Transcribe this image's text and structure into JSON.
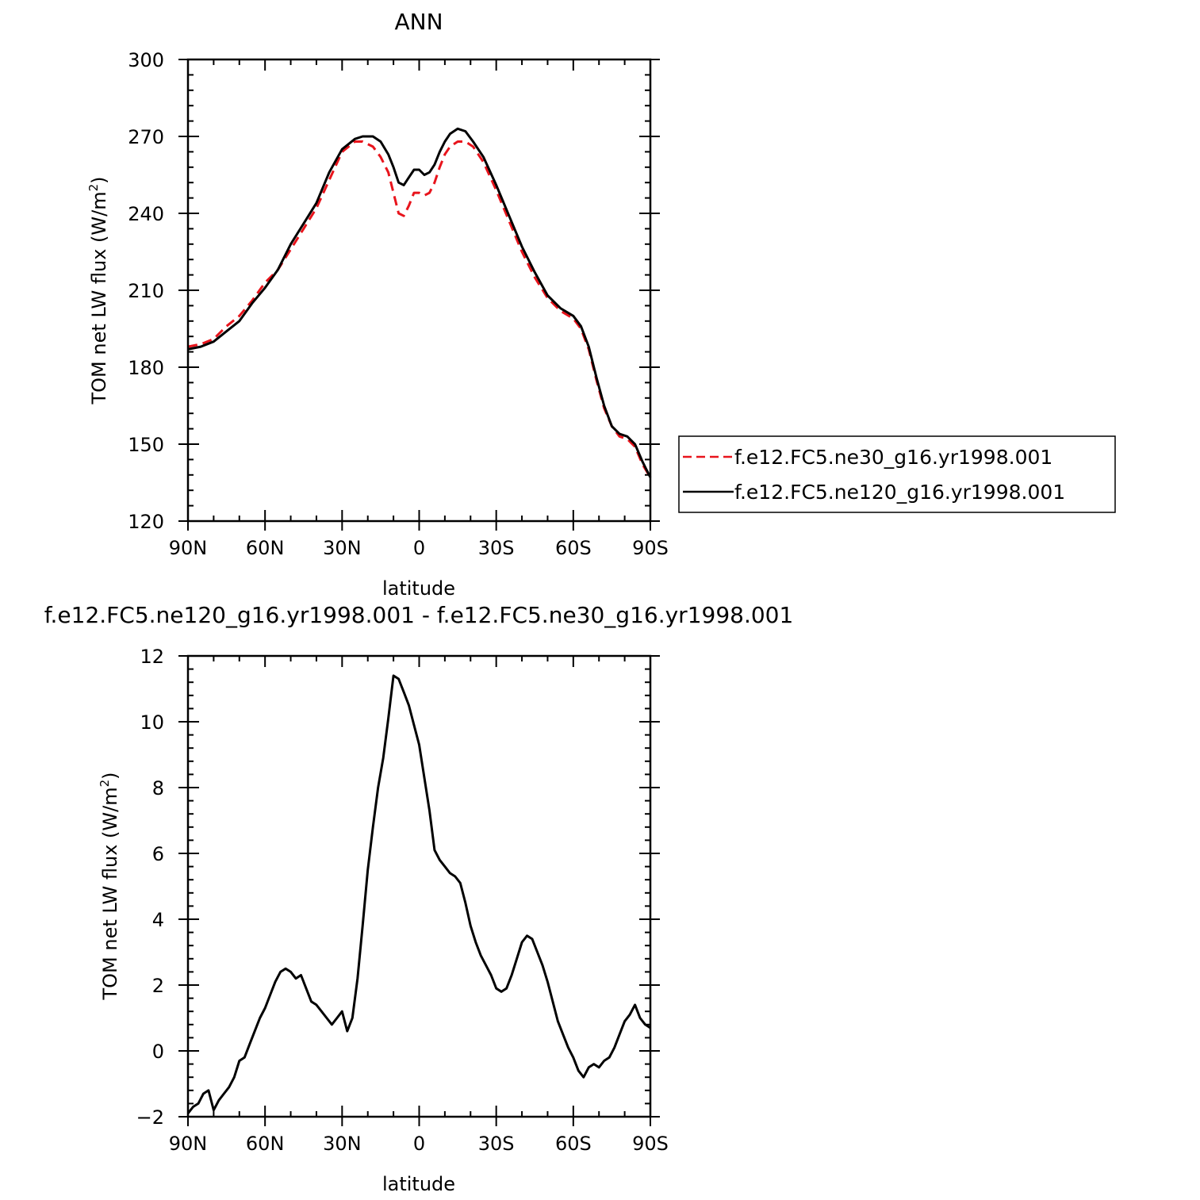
{
  "chart_data": [
    {
      "type": "line",
      "title": "ANN",
      "xlabel": "latitude",
      "ylabel": "TOM net LW flux (W/m",
      "ylabel_sup": "2",
      "ylabel_close": ")",
      "xlim": [
        90,
        -90
      ],
      "ylim": [
        120,
        300
      ],
      "x_ticks": [
        90,
        60,
        30,
        0,
        -30,
        -60,
        -90
      ],
      "x_tick_labels": [
        "90N",
        "60N",
        "30N",
        "0",
        "30S",
        "60S",
        "90S"
      ],
      "y_ticks": [
        120,
        150,
        180,
        210,
        240,
        270,
        300
      ],
      "y_tick_labels": [
        "120",
        "150",
        "180",
        "210",
        "240",
        "270",
        "300"
      ],
      "legend_position": "right",
      "series": [
        {
          "name": "f.e12.FC5.ne30_g16.yr1998.001",
          "color": "#e8141c",
          "dash": "dashed",
          "x": [
            90,
            85,
            80,
            75,
            70,
            65,
            60,
            55,
            50,
            45,
            40,
            35,
            30,
            25,
            22,
            18,
            15,
            12,
            10,
            8,
            6,
            4,
            2,
            0,
            -2,
            -4,
            -6,
            -8,
            -10,
            -12,
            -15,
            -18,
            -21,
            -25,
            -30,
            -35,
            -40,
            -45,
            -50,
            -55,
            -60,
            -63,
            -66,
            -69,
            -72,
            -75,
            -78,
            -81,
            -84,
            -87,
            -90
          ],
          "y": [
            188,
            189,
            191,
            196,
            200,
            206,
            213,
            218,
            226,
            234,
            242,
            253,
            264,
            268,
            268,
            266,
            262,
            256,
            248,
            240,
            239,
            243,
            248,
            248,
            247,
            248,
            252,
            258,
            263,
            266,
            268,
            268,
            266,
            260,
            249,
            237,
            225,
            215,
            207,
            202,
            199,
            195,
            187,
            175,
            164,
            157,
            153,
            152,
            149,
            142,
            137
          ]
        },
        {
          "name": "f.e12.FC5.ne120_g16.yr1998.001",
          "color": "#000000",
          "dash": "solid",
          "x": [
            90,
            85,
            80,
            75,
            70,
            65,
            60,
            55,
            50,
            45,
            40,
            35,
            30,
            25,
            22,
            18,
            15,
            12,
            10,
            8,
            6,
            4,
            2,
            0,
            -2,
            -4,
            -6,
            -8,
            -10,
            -12,
            -15,
            -18,
            -21,
            -25,
            -30,
            -35,
            -40,
            -45,
            -50,
            -55,
            -60,
            -63,
            -66,
            -69,
            -72,
            -75,
            -78,
            -81,
            -84,
            -87,
            -90
          ],
          "y": [
            187,
            188,
            190,
            194,
            198,
            205,
            211,
            218,
            228,
            236,
            244,
            256,
            265,
            269,
            270,
            270,
            268,
            263,
            258,
            252,
            251,
            254,
            257,
            257,
            255,
            256,
            259,
            264,
            268,
            271,
            273,
            272,
            268,
            262,
            251,
            239,
            227,
            217,
            208,
            203,
            200,
            196,
            188,
            176,
            165,
            157,
            154,
            153,
            150,
            143,
            137
          ]
        }
      ]
    },
    {
      "type": "line",
      "title": "f.e12.FC5.ne120_g16.yr1998.001 - f.e12.FC5.ne30_g16.yr1998.001",
      "xlabel": "latitude",
      "ylabel": "TOM net LW flux (W/m",
      "ylabel_sup": "2",
      "ylabel_close": ")",
      "xlim": [
        90,
        -90
      ],
      "ylim": [
        -2,
        12
      ],
      "x_ticks": [
        90,
        60,
        30,
        0,
        -30,
        -60,
        -90
      ],
      "x_tick_labels": [
        "90N",
        "60N",
        "30N",
        "0",
        "30S",
        "60S",
        "90S"
      ],
      "y_ticks": [
        -2,
        0,
        2,
        4,
        6,
        8,
        10,
        12
      ],
      "y_tick_labels": [
        "−2",
        "0",
        "2",
        "4",
        "6",
        "8",
        "10",
        "12"
      ],
      "series": [
        {
          "color": "#000000",
          "dash": "solid",
          "x": [
            90,
            88,
            86,
            84,
            82,
            80,
            78,
            76,
            74,
            72,
            70,
            68,
            66,
            64,
            62,
            60,
            58,
            56,
            54,
            52,
            50,
            48,
            46,
            44,
            42,
            40,
            38,
            36,
            34,
            32,
            30,
            28,
            26,
            24,
            22,
            20,
            18,
            16,
            14,
            12,
            10,
            8,
            6,
            4,
            2,
            0,
            -2,
            -4,
            -6,
            -8,
            -10,
            -12,
            -14,
            -16,
            -18,
            -20,
            -22,
            -24,
            -26,
            -28,
            -30,
            -32,
            -34,
            -36,
            -38,
            -40,
            -42,
            -44,
            -46,
            -48,
            -50,
            -52,
            -54,
            -56,
            -58,
            -60,
            -62,
            -64,
            -66,
            -68,
            -70,
            -72,
            -74,
            -76,
            -78,
            -80,
            -82,
            -84,
            -86,
            -88,
            -90
          ],
          "y": [
            -1.9,
            -1.7,
            -1.6,
            -1.3,
            -1.2,
            -1.8,
            -1.5,
            -1.3,
            -1.1,
            -0.8,
            -0.3,
            -0.2,
            0.2,
            0.6,
            1.0,
            1.3,
            1.7,
            2.1,
            2.4,
            2.5,
            2.4,
            2.2,
            2.3,
            1.9,
            1.5,
            1.4,
            1.2,
            1.0,
            0.8,
            1.0,
            1.2,
            0.6,
            1.0,
            2.2,
            3.8,
            5.5,
            6.8,
            8.0,
            8.9,
            10.1,
            11.4,
            11.3,
            10.9,
            10.5,
            9.9,
            9.3,
            8.3,
            7.3,
            6.1,
            5.8,
            5.6,
            5.4,
            5.3,
            5.1,
            4.5,
            3.8,
            3.3,
            2.9,
            2.6,
            2.3,
            1.9,
            1.8,
            1.9,
            2.3,
            2.8,
            3.3,
            3.5,
            3.4,
            3.0,
            2.6,
            2.1,
            1.5,
            0.9,
            0.5,
            0.1,
            -0.2,
            -0.6,
            -0.8,
            -0.5,
            -0.4,
            -0.5,
            -0.3,
            -0.2,
            0.1,
            0.5,
            0.9,
            1.1,
            1.4,
            1.0,
            0.8,
            0.7
          ]
        }
      ]
    }
  ]
}
